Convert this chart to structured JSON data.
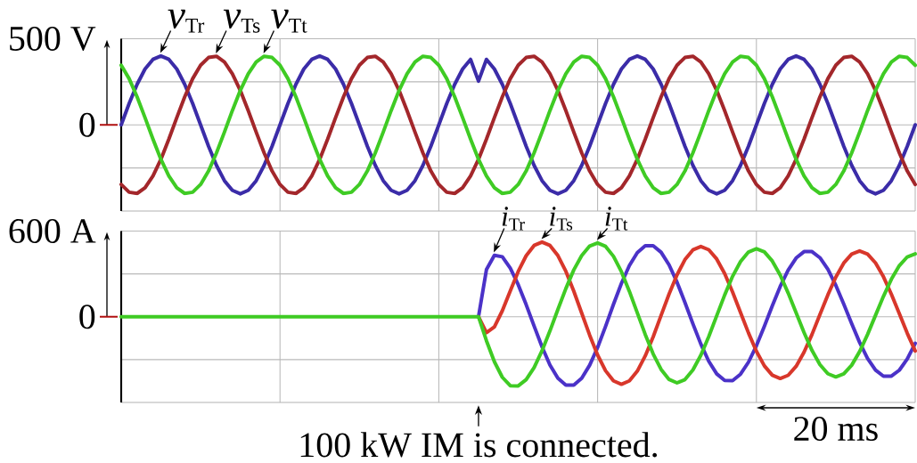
{
  "chart_data": [
    {
      "type": "line",
      "categories": [
        null,
        null,
        null,
        null,
        null,
        null,
        null,
        null,
        null,
        null,
        null,
        null,
        null,
        null,
        null,
        null,
        null,
        null,
        null,
        null,
        null,
        null,
        null,
        null,
        null,
        null,
        null,
        null,
        null,
        null,
        null,
        null,
        null,
        null,
        null,
        null,
        null,
        null,
        null,
        null,
        null,
        null,
        null,
        null,
        null,
        null,
        null,
        null,
        null,
        null,
        null,
        null,
        null,
        null,
        null,
        null,
        null,
        null,
        null,
        null,
        null,
        null,
        null,
        null,
        null,
        null,
        null,
        null,
        null,
        null,
        null,
        null,
        null,
        null,
        null,
        null,
        null,
        null,
        null,
        null,
        null,
        null,
        null,
        null,
        null,
        null,
        null,
        null,
        null,
        null,
        null,
        null,
        null,
        null,
        null,
        null,
        null,
        null,
        null,
        null,
        null
      ],
      "series": [
        {
          "name": "*v*$_{Tr}$",
          "color": "#3b2ca8",
          "values": [
            0,
            124,
            235,
            324,
            380,
            400,
            380,
            324,
            235,
            124,
            0,
            -124,
            -235,
            -324,
            -380,
            -400,
            -380,
            -324,
            -235,
            -124,
            0,
            124,
            235,
            324,
            380,
            400,
            380,
            324,
            235,
            124,
            0,
            -124,
            -235,
            -324,
            -380,
            -400,
            -380,
            -324,
            -235,
            -124,
            0,
            124,
            235,
            324,
            380,
            254,
            380,
            324,
            235,
            124,
            0,
            -124,
            -235,
            -324,
            -380,
            -400,
            -380,
            -324,
            -235,
            -124,
            0,
            124,
            235,
            324,
            380,
            400,
            380,
            324,
            235,
            124,
            0,
            -124,
            -235,
            -324,
            -380,
            -400,
            -380,
            -324,
            -235,
            -124,
            0,
            124,
            235,
            324,
            380,
            400,
            380,
            324,
            235,
            124,
            0,
            -124,
            -235,
            -324,
            -380,
            -400,
            -380,
            -324,
            -235,
            -124,
            0
          ]
        },
        {
          "name": "*v*$_{Ts}$",
          "color": "#a3272b",
          "values": [
            -346,
            -391,
            -398,
            -365,
            -297,
            -200,
            -83,
            42,
            163,
            268,
            346,
            391,
            398,
            365,
            297,
            200,
            83,
            -42,
            -163,
            -268,
            -346,
            -391,
            -398,
            -365,
            -297,
            -200,
            -83,
            42,
            163,
            268,
            346,
            391,
            398,
            365,
            297,
            200,
            83,
            -42,
            -163,
            -268,
            -346,
            -391,
            -398,
            -365,
            -297,
            -200,
            -83,
            42,
            163,
            268,
            346,
            391,
            398,
            365,
            297,
            200,
            83,
            -42,
            -163,
            -268,
            -346,
            -391,
            -398,
            -365,
            -297,
            -200,
            -83,
            42,
            163,
            268,
            346,
            391,
            398,
            365,
            297,
            200,
            83,
            -42,
            -163,
            -268,
            -346,
            -391,
            -398,
            -365,
            -297,
            -200,
            -83,
            42,
            163,
            268,
            346,
            391,
            398,
            365,
            297,
            200,
            83,
            -42,
            -163,
            -268,
            -346
          ]
        },
        {
          "name": "*v*$_{Tt}$",
          "color": "#3fcb24",
          "values": [
            346,
            268,
            163,
            42,
            -83,
            -200,
            -297,
            -365,
            -398,
            -391,
            -346,
            -268,
            -163,
            -42,
            83,
            200,
            297,
            365,
            398,
            391,
            346,
            268,
            163,
            42,
            -83,
            -200,
            -297,
            -365,
            -398,
            -391,
            -346,
            -268,
            -163,
            -42,
            83,
            200,
            297,
            365,
            398,
            391,
            346,
            268,
            163,
            42,
            -83,
            -200,
            -297,
            -365,
            -398,
            -391,
            -346,
            -268,
            -163,
            -42,
            83,
            200,
            297,
            365,
            398,
            391,
            346,
            268,
            163,
            42,
            -83,
            -200,
            -297,
            -365,
            -398,
            -391,
            -346,
            -268,
            -163,
            -42,
            83,
            200,
            297,
            365,
            398,
            391,
            346,
            268,
            163,
            42,
            -83,
            -200,
            -297,
            -365,
            -398,
            -391,
            -346,
            -268,
            -163,
            -42,
            83,
            200,
            297,
            365,
            398,
            391,
            346
          ]
        }
      ],
      "ylim": [
        -500,
        500
      ],
      "yticks": [
        {
          "value": -250,
          "label": null
        },
        0,
        {
          "value": 250,
          "label": null
        },
        {
          "value": 500,
          "label": "500 V"
        }
      ],
      "grid": true,
      "tick_labels": "y"
    },
    {
      "type": "line",
      "categories": [
        null,
        null,
        null,
        null,
        null,
        null,
        null,
        null,
        null,
        null,
        null,
        null,
        null,
        null,
        null,
        null,
        null,
        null,
        null,
        null,
        null,
        null,
        null,
        null,
        null,
        null,
        null,
        null,
        null,
        null,
        null,
        null,
        null,
        null,
        null,
        null,
        null,
        null,
        null,
        null,
        null,
        null,
        null,
        null,
        null,
        null,
        null,
        null,
        null,
        null,
        null,
        null,
        null,
        null,
        null,
        null,
        null,
        null,
        null,
        null,
        null,
        null,
        null,
        null,
        null,
        null,
        null,
        null,
        null,
        null,
        null,
        null,
        null,
        null,
        null,
        null,
        null,
        null,
        null,
        null,
        null,
        null,
        null,
        null,
        null,
        null,
        null,
        null,
        null,
        null,
        null,
        null,
        null,
        null,
        null,
        null,
        null,
        null,
        null,
        null,
        null
      ],
      "series": [
        {
          "name": "*i*$_{Tr}$",
          "color": "#4b32c8",
          "values": [
            null,
            null,
            null,
            null,
            null,
            null,
            null,
            null,
            null,
            null,
            null,
            null,
            null,
            null,
            null,
            null,
            null,
            null,
            null,
            null,
            null,
            null,
            null,
            null,
            null,
            null,
            null,
            null,
            null,
            null,
            null,
            null,
            null,
            null,
            null,
            null,
            null,
            null,
            null,
            null,
            null,
            null,
            null,
            null,
            null,
            0,
            330,
            430,
            420,
            340,
            225,
            85,
            -65,
            -210,
            -338,
            -430,
            -478,
            -478,
            -430,
            -339,
            -215,
            -68,
            87,
            234,
            358,
            449,
            497,
            497,
            451,
            363,
            242,
            100,
            -49,
            -191,
            -312,
            -400,
            -446,
            -447,
            -402,
            -318,
            -203,
            -67,
            76,
            212,
            327,
            411,
            456,
            456,
            413,
            332,
            220,
            89,
            -49,
            -180,
            -292,
            -373,
            -416,
            -416,
            -374,
            -295,
            -186
          ]
        },
        {
          "name": "*i*$_{Ts}$",
          "color": "#d8372b",
          "values": [
            null,
            null,
            null,
            null,
            null,
            null,
            null,
            null,
            null,
            null,
            null,
            null,
            null,
            null,
            null,
            null,
            null,
            null,
            null,
            null,
            null,
            null,
            null,
            null,
            null,
            null,
            null,
            null,
            null,
            null,
            null,
            null,
            null,
            null,
            null,
            null,
            null,
            null,
            null,
            null,
            null,
            null,
            null,
            null,
            null,
            0,
            -111,
            -71,
            42,
            181,
            317,
            427,
            499,
            523,
            499,
            428,
            318,
            179,
            25,
            -129,
            -268,
            -378,
            -449,
            -473,
            -449,
            -381,
            -274,
            -140,
            10,
            159,
            293,
            400,
            468,
            492,
            469,
            404,
            302,
            173,
            30,
            -113,
            -242,
            -344,
            -409,
            -432,
            -410,
            -347,
            -248,
            -124,
            15,
            153,
            277,
            376,
            439,
            461,
            439,
            377,
            280,
            157,
            21,
            -116,
            -239
          ]
        },
        {
          "name": "*i*$_{Tt}$",
          "color": "#3fcb24",
          "values": [
            0,
            0,
            0,
            0,
            0,
            0,
            0,
            0,
            0,
            0,
            0,
            0,
            0,
            0,
            0,
            0,
            0,
            0,
            0,
            0,
            0,
            0,
            0,
            0,
            0,
            0,
            0,
            0,
            0,
            0,
            0,
            0,
            0,
            0,
            0,
            0,
            0,
            0,
            0,
            0,
            0,
            0,
            0,
            0,
            0,
            0,
            -168,
            -315,
            -424,
            -483,
            -484,
            -440,
            -356,
            -238,
            -99,
            51,
            197,
            328,
            429,
            495,
            517,
            493,
            423,
            315,
            178,
            27,
            -124,
            -261,
            -369,
            -439,
            -463,
            -440,
            -373,
            -270,
            -139,
            7,
            152,
            283,
            386,
            453,
            476,
            454,
            390,
            291,
            166,
            28,
            -111,
            -236,
            -335,
            -399,
            -421,
            -400,
            -339,
            -244,
            -124,
            10,
            143,
            263,
            358,
            419,
            440
          ]
        }
      ],
      "ylim": [
        -600,
        600
      ],
      "yticks": [
        {
          "value": -300,
          "label": null
        },
        0,
        {
          "value": 300,
          "label": null
        },
        {
          "value": 600,
          "label": "600 A"
        }
      ],
      "grid": true,
      "tick_labels": "y",
      "annotations": [
        "100 kW IM is connected.",
        "20 ms"
      ]
    }
  ]
}
